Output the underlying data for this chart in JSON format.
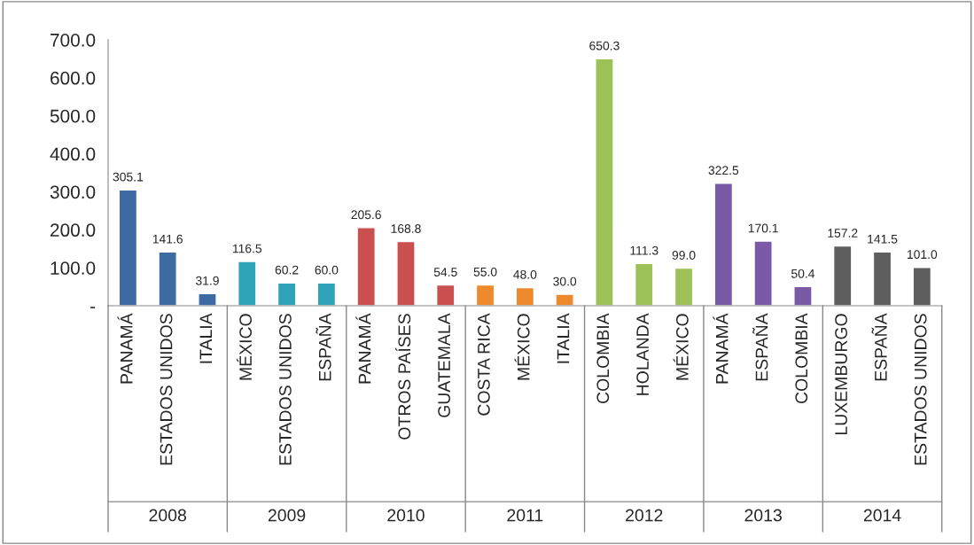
{
  "chart_data": {
    "type": "bar",
    "categories": [
      "PANAMÁ",
      "ESTADOS UNIDOS",
      "ITALIA",
      "MÉXICO",
      "ESTADOS UNIDOS",
      "ESPAÑA",
      "PANAMÁ",
      "OTROS PAÍSES",
      "GUATEMALA",
      "COSTA RICA",
      "MÉXICO",
      "ITALIA",
      "COLOMBIA",
      "HOLANDA",
      "MÉXICO",
      "PANAMÁ",
      "ESPAÑA",
      "COLOMBIA",
      "LUXEMBURGO",
      "ESPAÑA",
      "ESTADOS UNIDOS"
    ],
    "values": [
      305.1,
      141.6,
      31.9,
      116.5,
      60.2,
      60.0,
      205.6,
      168.8,
      54.5,
      55.0,
      48.0,
      30.0,
      650.3,
      111.3,
      99.0,
      322.5,
      170.1,
      50.4,
      157.2,
      141.5,
      101.0
    ],
    "value_labels": [
      "305.1",
      "141.6",
      "31.9",
      "116.5",
      "60.2",
      "60.0",
      "205.6",
      "168.8",
      "54.5",
      "55.0",
      "48.0",
      "30.0",
      "650.3",
      "111.3",
      "99.0",
      "322.5",
      "170.1",
      "50.4",
      "157.2",
      "141.5",
      "101.0"
    ],
    "colors": [
      "#3d6aa3",
      "#3d6aa3",
      "#3d6aa3",
      "#2fa3b8",
      "#2fa3b8",
      "#2fa3b8",
      "#c9504e",
      "#c9504e",
      "#c9504e",
      "#ee8a2e",
      "#ee8a2e",
      "#ee8a2e",
      "#9cc158",
      "#9cc158",
      "#9cc158",
      "#7a5aa6",
      "#7a5aa6",
      "#7a5aa6",
      "#5e5e5e",
      "#5e5e5e",
      "#5e5e5e"
    ],
    "annotations": [
      "2008",
      "2009",
      "2010",
      "2011",
      "2012",
      "2013",
      "2014"
    ],
    "ylim": [
      0,
      700
    ],
    "yticks": [
      {
        "value": 0,
        "label": "-"
      },
      {
        "value": 100,
        "label": "100.0"
      },
      {
        "value": 200,
        "label": "200.0"
      },
      {
        "value": 300,
        "label": "300.0"
      },
      {
        "value": 400,
        "label": "400.0"
      },
      {
        "value": 500,
        "label": "500.0"
      },
      {
        "value": 600,
        "label": "600.0"
      },
      {
        "value": 700,
        "label": "700.0"
      }
    ],
    "grid": false,
    "legend": false
  }
}
